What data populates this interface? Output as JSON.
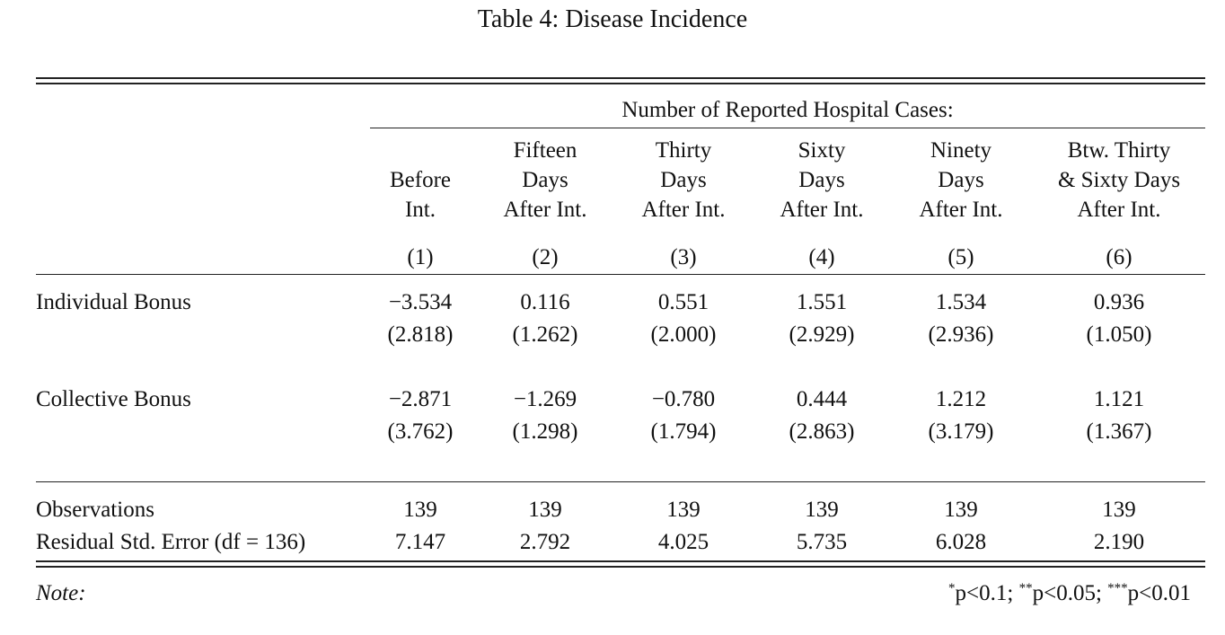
{
  "title": "Table 4: Disease Incidence",
  "dependent_header": "Number of Reported Hospital Cases:",
  "columns": [
    {
      "lines": [
        "Before",
        "Int."
      ],
      "num": "(1)"
    },
    {
      "lines": [
        "Fifteen",
        "Days",
        "After Int."
      ],
      "num": "(2)"
    },
    {
      "lines": [
        "Thirty",
        "Days",
        "After Int."
      ],
      "num": "(3)"
    },
    {
      "lines": [
        "Sixty",
        "Days",
        "After Int."
      ],
      "num": "(4)"
    },
    {
      "lines": [
        "Ninety",
        "Days",
        "After Int."
      ],
      "num": "(5)"
    },
    {
      "lines": [
        "Btw. Thirty",
        "& Sixty Days",
        "After Int."
      ],
      "num": "(6)"
    }
  ],
  "rows": [
    {
      "label": "Individual Bonus",
      "coef": [
        "−3.534",
        "0.116",
        "0.551",
        "1.551",
        "1.534",
        "0.936"
      ],
      "se": [
        "(2.818)",
        "(1.262)",
        "(2.000)",
        "(2.929)",
        "(2.936)",
        "(1.050)"
      ]
    },
    {
      "label": "Collective Bonus",
      "coef": [
        "−2.871",
        "−1.269",
        "−0.780",
        "0.444",
        "1.212",
        "1.121"
      ],
      "se": [
        "(3.762)",
        "(1.298)",
        "(1.794)",
        "(2.863)",
        "(3.179)",
        "(1.367)"
      ]
    }
  ],
  "stats": [
    {
      "label": "Observations",
      "values": [
        "139",
        "139",
        "139",
        "139",
        "139",
        "139"
      ]
    },
    {
      "label": "Residual Std. Error (df = 136)",
      "values": [
        "7.147",
        "2.792",
        "4.025",
        "5.735",
        "6.028",
        "2.190"
      ]
    }
  ],
  "note": {
    "label": "Note:",
    "sig": [
      {
        "stars": "*",
        "text": "p<0.1; "
      },
      {
        "stars": "**",
        "text": "p<0.05; "
      },
      {
        "stars": "***",
        "text": "p<0.01"
      }
    ]
  }
}
